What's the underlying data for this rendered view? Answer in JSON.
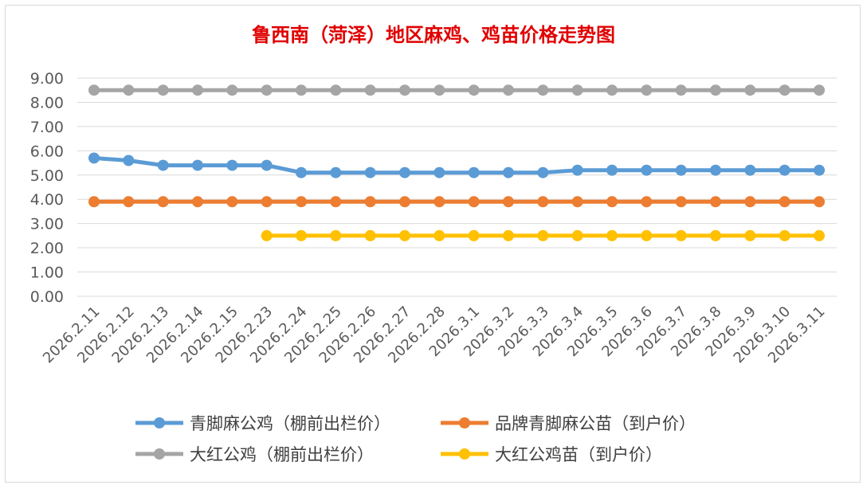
{
  "chart_data": {
    "type": "line",
    "title": "鲁西南（菏泽）地区麻鸡、鸡苗价格走势图",
    "xlabel": "",
    "ylabel": "",
    "ylim": [
      0,
      9
    ],
    "y_ticks": [
      "0.00",
      "1.00",
      "2.00",
      "3.00",
      "4.00",
      "5.00",
      "6.00",
      "7.00",
      "8.00",
      "9.00"
    ],
    "grid": true,
    "legend_position": "bottom",
    "categories": [
      "2026.2.11",
      "2026.2.12",
      "2026.2.13",
      "2026.2.14",
      "2026.2.15",
      "2026.2.23",
      "2026.2.24",
      "2026.2.25",
      "2026.2.26",
      "2026.2.27",
      "2026.2.28",
      "2026.3.1",
      "2026.3.2",
      "2026.3.3",
      "2026.3.4",
      "2026.3.5",
      "2026.3.6",
      "2026.3.7",
      "2026.3.8",
      "2026.3.9",
      "2026.3.10",
      "2026.3.11"
    ],
    "series": [
      {
        "name": "青脚麻公鸡（棚前出栏价）",
        "color": "#5b9bd5",
        "values": [
          5.7,
          5.6,
          5.4,
          5.4,
          5.4,
          5.4,
          5.1,
          5.1,
          5.1,
          5.1,
          5.1,
          5.1,
          5.1,
          5.1,
          5.2,
          5.2,
          5.2,
          5.2,
          5.2,
          5.2,
          5.2,
          5.2
        ]
      },
      {
        "name": "品牌青脚麻公苗（到户价）",
        "color": "#ed7d31",
        "values": [
          3.9,
          3.9,
          3.9,
          3.9,
          3.9,
          3.9,
          3.9,
          3.9,
          3.9,
          3.9,
          3.9,
          3.9,
          3.9,
          3.9,
          3.9,
          3.9,
          3.9,
          3.9,
          3.9,
          3.9,
          3.9,
          3.9
        ]
      },
      {
        "name": "大红公鸡（棚前出栏价）",
        "color": "#a5a5a5",
        "values": [
          8.5,
          8.5,
          8.5,
          8.5,
          8.5,
          8.5,
          8.5,
          8.5,
          8.5,
          8.5,
          8.5,
          8.5,
          8.5,
          8.5,
          8.5,
          8.5,
          8.5,
          8.5,
          8.5,
          8.5,
          8.5,
          8.5
        ]
      },
      {
        "name": "大红公鸡苗（到户价）",
        "color": "#ffc000",
        "values": [
          null,
          null,
          null,
          null,
          null,
          2.5,
          2.5,
          2.5,
          2.5,
          2.5,
          2.5,
          2.5,
          2.5,
          2.5,
          2.5,
          2.5,
          2.5,
          2.5,
          2.5,
          2.5,
          2.5,
          2.5
        ]
      }
    ]
  }
}
